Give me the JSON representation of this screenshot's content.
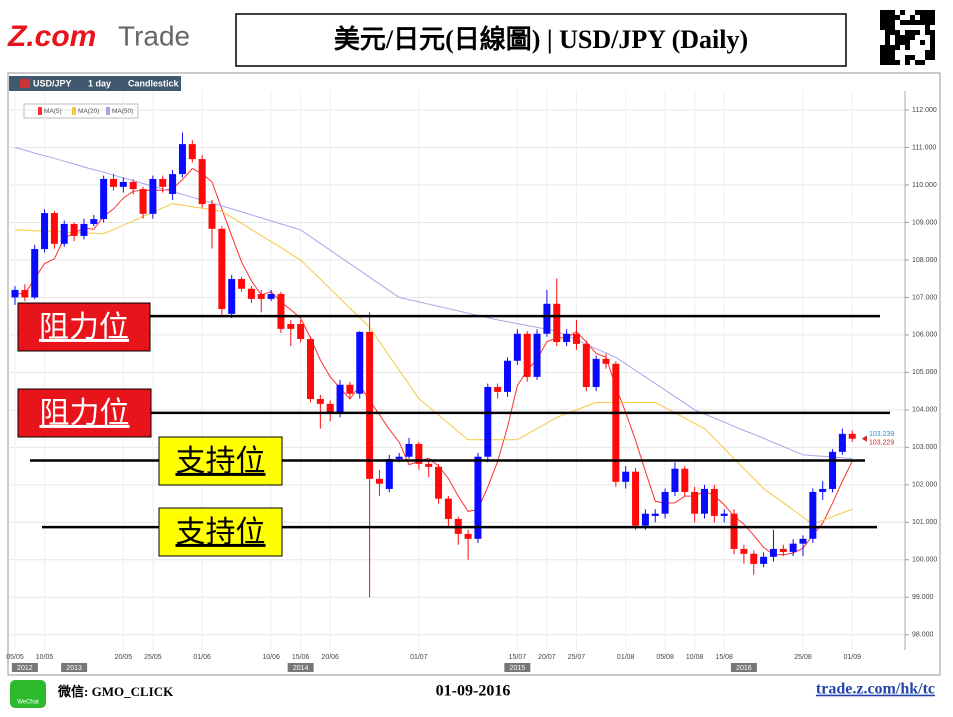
{
  "header": {
    "logo_brand": "Z.com",
    "logo_product": "Trade",
    "title": "美元/日元(日線圖) | USD/JPY (Daily)"
  },
  "toolbar": {
    "symbol": "USD/JPY",
    "interval": "1 day",
    "chart_style": "Candlestick"
  },
  "footer": {
    "wechat_icon": "WeChat",
    "wechat": "微信: GMO_CLICK",
    "date": "01-09-2016",
    "url": "trade.z.com/hk/tc"
  },
  "chart_data": {
    "type": "candlestick",
    "grid": true,
    "categories": [
      "05/05",
      null,
      null,
      "10/05",
      null,
      null,
      null,
      null,
      null,
      null,
      null,
      "20/05",
      null,
      null,
      "25/05",
      null,
      null,
      null,
      null,
      "01/06",
      null,
      null,
      null,
      null,
      null,
      null,
      "10/06",
      null,
      null,
      "15/06",
      null,
      null,
      "20/06",
      null,
      null,
      null,
      null,
      null,
      null,
      null,
      null,
      "01/07",
      null,
      null,
      null,
      null,
      null,
      null,
      null,
      null,
      null,
      "15/07",
      null,
      null,
      "20/07",
      null,
      null,
      "25/07",
      null,
      null,
      null,
      null,
      "01/08",
      null,
      null,
      null,
      "05/08",
      null,
      null,
      "10/08",
      null,
      null,
      "15/08",
      null,
      null,
      null,
      null,
      null,
      null,
      null,
      "25/08",
      null,
      null,
      null,
      null,
      "01/09"
    ],
    "year_labels": [
      null,
      "2012",
      null,
      null,
      null,
      null,
      "2013",
      null,
      null,
      null,
      null,
      null,
      null,
      null,
      null,
      null,
      null,
      null,
      null,
      null,
      null,
      null,
      null,
      null,
      null,
      null,
      null,
      null,
      null,
      "2014",
      null,
      null,
      null,
      null,
      null,
      null,
      null,
      null,
      null,
      null,
      null,
      null,
      null,
      null,
      null,
      null,
      null,
      null,
      null,
      null,
      null,
      "2015",
      null,
      null,
      null,
      null,
      null,
      null,
      null,
      null,
      null,
      null,
      null,
      null,
      null,
      null,
      null,
      null,
      null,
      null,
      null,
      null,
      null,
      null,
      "2016",
      null,
      null,
      null,
      null,
      null,
      null,
      null,
      null,
      null,
      null,
      null
    ],
    "series": [
      {
        "name": "USD/JPY",
        "up_color": "#0a0aff",
        "down_color": "#ff0a0a",
        "open": [
          107.0,
          107.2,
          107.0,
          108.29,
          109.25,
          108.43,
          108.96,
          108.64,
          108.96,
          109.09,
          110.16,
          109.95,
          110.08,
          109.89,
          109.23,
          110.16,
          109.76,
          110.29,
          111.09,
          110.69,
          109.49,
          108.83,
          106.56,
          107.49,
          107.23,
          107.09,
          106.96,
          107.09,
          106.29,
          106.29,
          105.89,
          104.29,
          104.16,
          103.89,
          104.67,
          104.43,
          106.08,
          102.16,
          101.89,
          102.69,
          102.75,
          103.09,
          102.56,
          102.48,
          101.63,
          101.09,
          100.69,
          100.56,
          102.75,
          104.61,
          104.48,
          105.31,
          106.03,
          104.88,
          106.03,
          106.83,
          105.81,
          106.03,
          105.76,
          104.61,
          105.36,
          105.23,
          102.08,
          102.35,
          100.91,
          101.17,
          101.23,
          101.81,
          102.43,
          101.81,
          101.23,
          101.89,
          101.17,
          101.23,
          100.29,
          100.16,
          99.89,
          100.08,
          100.29,
          100.21,
          100.43,
          100.56,
          101.81,
          101.89,
          102.88,
          103.36
        ],
        "high": [
          107.3,
          107.35,
          108.4,
          109.35,
          109.3,
          109.05,
          109.0,
          109.1,
          109.2,
          110.25,
          110.3,
          110.2,
          110.15,
          109.95,
          110.25,
          110.25,
          110.4,
          111.4,
          111.2,
          110.8,
          109.6,
          108.9,
          107.6,
          107.55,
          107.3,
          107.2,
          107.2,
          107.15,
          106.4,
          106.4,
          105.95,
          104.4,
          104.25,
          104.8,
          104.75,
          106.1,
          106.6,
          102.4,
          102.8,
          102.85,
          103.25,
          103.15,
          102.65,
          102.55,
          101.7,
          101.15,
          100.8,
          102.85,
          104.7,
          104.7,
          105.4,
          106.15,
          106.1,
          106.15,
          107.2,
          107.5,
          106.15,
          106.4,
          105.85,
          105.45,
          105.5,
          105.3,
          102.5,
          102.45,
          101.35,
          101.35,
          101.9,
          102.6,
          102.5,
          101.95,
          102.0,
          102.0,
          101.35,
          101.35,
          100.4,
          100.25,
          100.2,
          100.8,
          100.4,
          100.55,
          100.65,
          101.9,
          102.1,
          102.95,
          103.5,
          103.45
        ],
        "low": [
          106.8,
          106.9,
          106.95,
          108.2,
          108.3,
          108.35,
          108.5,
          108.55,
          108.9,
          109.0,
          109.85,
          109.8,
          109.75,
          109.1,
          109.1,
          109.8,
          109.6,
          110.2,
          110.6,
          109.4,
          108.3,
          106.5,
          106.45,
          107.15,
          106.85,
          106.6,
          106.9,
          106.05,
          105.7,
          105.8,
          104.2,
          103.5,
          103.7,
          103.8,
          104.3,
          104.3,
          99.0,
          101.7,
          101.8,
          102.6,
          102.7,
          102.4,
          102.2,
          101.5,
          100.9,
          100.4,
          100.0,
          100.45,
          102.6,
          104.3,
          104.35,
          105.2,
          104.75,
          104.8,
          105.95,
          105.7,
          105.7,
          105.6,
          104.5,
          104.5,
          105.1,
          101.95,
          101.9,
          100.8,
          100.8,
          101.0,
          101.1,
          101.7,
          101.7,
          101.0,
          101.1,
          101.0,
          101.0,
          100.15,
          99.9,
          99.6,
          99.8,
          99.95,
          100.1,
          100.1,
          100.1,
          100.45,
          101.6,
          101.8,
          102.8,
          103.15
        ],
        "close": [
          107.2,
          107.0,
          108.29,
          109.25,
          108.43,
          108.96,
          108.64,
          108.96,
          109.09,
          110.16,
          109.95,
          110.08,
          109.89,
          109.23,
          110.16,
          109.95,
          110.29,
          111.09,
          110.69,
          109.49,
          108.83,
          106.69,
          107.49,
          107.23,
          106.96,
          106.96,
          107.09,
          106.16,
          106.16,
          105.89,
          104.29,
          104.16,
          103.89,
          104.67,
          104.43,
          106.08,
          102.16,
          102.03,
          102.69,
          102.75,
          103.09,
          102.56,
          102.48,
          101.63,
          101.09,
          100.69,
          100.56,
          102.75,
          104.61,
          104.48,
          105.31,
          106.03,
          104.88,
          106.03,
          106.83,
          105.81,
          106.03,
          105.76,
          104.61,
          105.36,
          105.23,
          102.08,
          102.35,
          100.91,
          101.23,
          101.23,
          101.81,
          102.43,
          101.81,
          101.23,
          101.89,
          101.17,
          101.23,
          100.29,
          100.16,
          99.89,
          100.08,
          100.29,
          100.21,
          100.43,
          100.56,
          101.81,
          101.89,
          102.88,
          103.36,
          103.23
        ]
      }
    ],
    "lines": [
      {
        "name": "MA(5)",
        "color": "#ff3030",
        "values": [
          107.1,
          107.1,
          107.5,
          107.9,
          108.03,
          108.59,
          108.71,
          108.85,
          108.82,
          109.16,
          109.36,
          109.65,
          109.83,
          109.86,
          109.86,
          109.86,
          109.9,
          110.14,
          110.44,
          110.3,
          110.08,
          109.36,
          108.64,
          107.95,
          107.44,
          107.07,
          107.15,
          106.88,
          106.67,
          106.45,
          105.92,
          105.33,
          104.88,
          104.58,
          104.29,
          104.65,
          104.25,
          103.87,
          103.48,
          103.14,
          102.54,
          102.62,
          102.71,
          102.5,
          102.17,
          101.69,
          101.29,
          101.34,
          101.94,
          102.62,
          103.54,
          104.64,
          105.06,
          105.35,
          105.82,
          105.92,
          105.92,
          106.09,
          105.81,
          105.51,
          105.4,
          104.61,
          103.93,
          103.19,
          102.36,
          101.56,
          101.51,
          101.52,
          101.7,
          101.7,
          101.83,
          101.71,
          101.47,
          101.16,
          100.95,
          100.65,
          100.33,
          100.14,
          100.13,
          100.18,
          100.31,
          100.66,
          100.98,
          101.51,
          102.1,
          102.63
        ]
      },
      {
        "name": "MA(20)",
        "color": "#f5c842",
        "values": [
          108.8,
          108.79,
          108.78,
          108.77,
          108.76,
          108.74,
          108.73,
          108.72,
          108.71,
          108.7,
          108.81,
          108.93,
          109.04,
          109.16,
          109.27,
          109.39,
          109.5,
          109.46,
          109.42,
          109.38,
          109.34,
          109.3,
          109.14,
          108.98,
          108.81,
          108.65,
          108.49,
          108.33,
          108.16,
          108.0,
          107.74,
          107.49,
          107.23,
          106.97,
          106.71,
          106.46,
          106.2,
          105.82,
          105.44,
          105.06,
          104.68,
          104.3,
          104.08,
          103.86,
          103.64,
          103.42,
          103.2,
          103.2,
          103.2,
          103.2,
          103.2,
          103.2,
          103.35,
          103.5,
          103.65,
          103.8,
          103.9,
          104.0,
          104.1,
          104.2,
          104.2,
          104.2,
          104.2,
          104.2,
          104.2,
          104.2,
          104.06,
          103.92,
          103.78,
          103.64,
          103.5,
          103.23,
          102.97,
          102.7,
          102.43,
          102.17,
          101.9,
          101.71,
          101.52,
          101.33,
          101.14,
          100.95,
          101.05,
          101.15,
          101.25,
          101.35
        ]
      },
      {
        "name": "MA(50)",
        "color": "#a9a6e8",
        "values": [
          111.0,
          110.93,
          110.85,
          110.78,
          110.71,
          110.63,
          110.56,
          110.48,
          110.41,
          110.34,
          110.26,
          110.19,
          110.12,
          110.04,
          109.97,
          109.89,
          109.82,
          109.75,
          109.67,
          109.6,
          109.52,
          109.44,
          109.36,
          109.28,
          109.2,
          109.12,
          109.04,
          108.96,
          108.88,
          108.8,
          108.62,
          108.44,
          108.26,
          108.08,
          107.9,
          107.72,
          107.54,
          107.36,
          107.18,
          107.0,
          106.94,
          106.88,
          106.82,
          106.76,
          106.7,
          106.64,
          106.58,
          106.52,
          106.46,
          106.4,
          106.35,
          106.3,
          106.25,
          106.2,
          106.15,
          106.1,
          105.98,
          105.87,
          105.75,
          105.63,
          105.52,
          105.4,
          105.23,
          105.05,
          104.88,
          104.7,
          104.53,
          104.35,
          104.18,
          104.0,
          103.89,
          103.78,
          103.67,
          103.56,
          103.45,
          103.35,
          103.24,
          103.13,
          103.02,
          102.91,
          102.8,
          102.78,
          102.76,
          102.74,
          102.72,
          102.7
        ]
      }
    ],
    "price_tags": [
      {
        "value": 103.239,
        "color": "#1f8fd6"
      },
      {
        "value": 103.229,
        "color": "#e02020"
      }
    ],
    "levels": [
      {
        "label": "阻力位",
        "value": 106.5,
        "color": "#e8141b",
        "text_color": "#ffffff"
      },
      {
        "label": "阻力位",
        "value": 103.92,
        "color": "#e8141b",
        "text_color": "#ffffff"
      },
      {
        "label": "支持位",
        "value": 102.65,
        "color": "#ffff00",
        "text_color": "#000000"
      },
      {
        "label": "支持位",
        "value": 100.87,
        "color": "#ffff00",
        "text_color": "#000000"
      }
    ],
    "ylim": [
      97.7,
      112.4
    ],
    "yticks": [
      {
        "value": 98,
        "label": "98.000"
      },
      {
        "value": 99,
        "label": "99.000"
      },
      {
        "value": 100,
        "label": "100.000"
      },
      {
        "value": 101,
        "label": "101.000"
      },
      {
        "value": 102,
        "label": "102.000"
      },
      {
        "value": 103,
        "label": "103.000"
      },
      {
        "value": 104,
        "label": "104.000"
      },
      {
        "value": 105,
        "label": "105.000"
      },
      {
        "value": 106,
        "label": "106.000"
      },
      {
        "value": 107,
        "label": "107.000"
      },
      {
        "value": 108,
        "label": "108.000"
      },
      {
        "value": 109,
        "label": "109.000"
      },
      {
        "value": 110,
        "label": "110.000"
      },
      {
        "value": 111,
        "label": "111.000"
      },
      {
        "value": 112,
        "label": "112.000"
      }
    ]
  }
}
